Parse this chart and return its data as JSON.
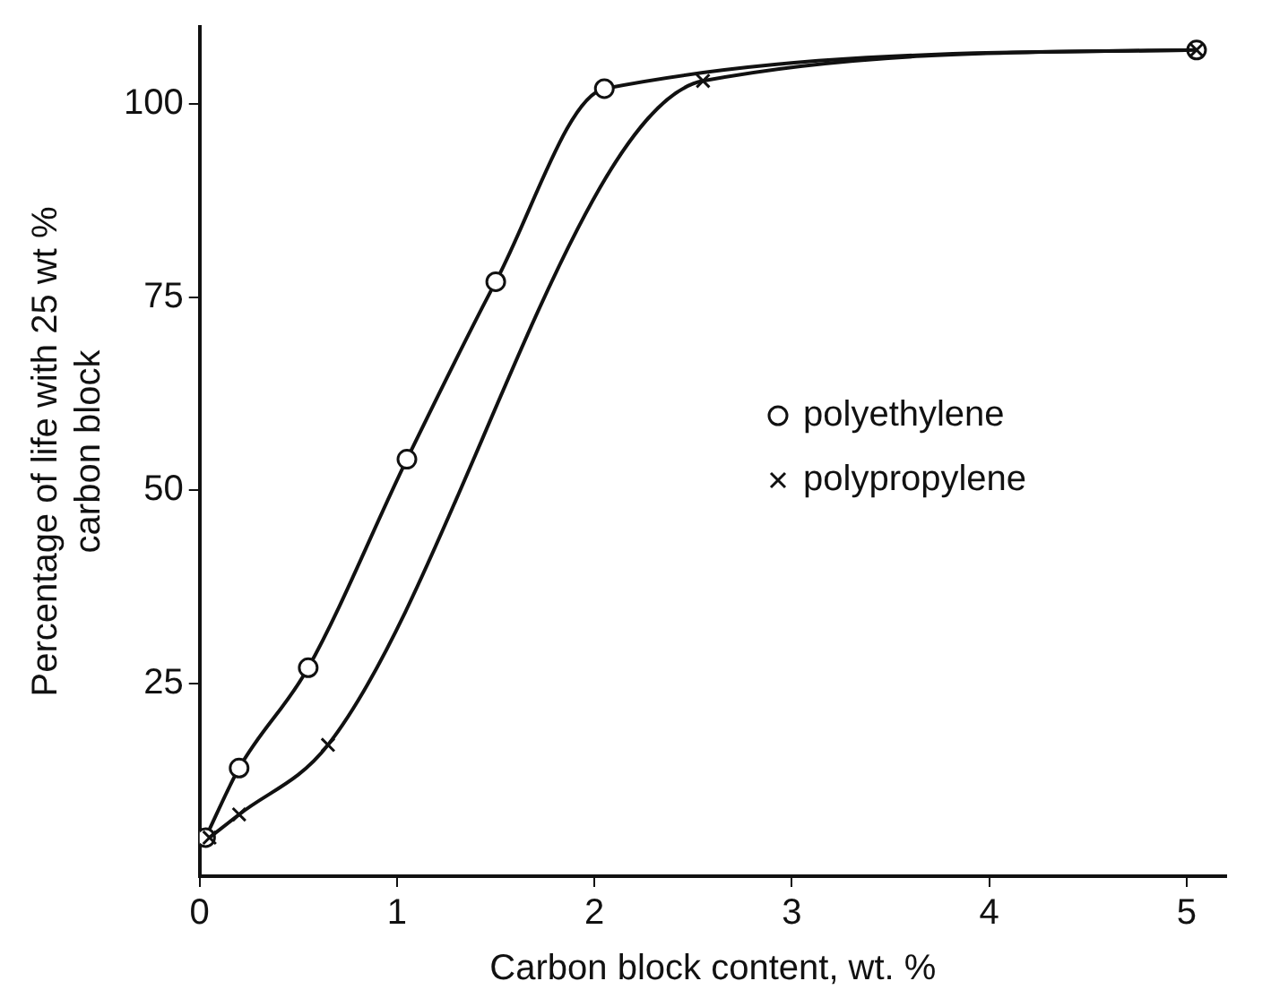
{
  "chart_data": {
    "type": "line",
    "xlabel": "Carbon block content, wt. %",
    "ylabel": "Percentage of life with 25 wt % carbon block",
    "xlim": [
      0,
      5.2
    ],
    "xticks": [
      0,
      1,
      2,
      3,
      4,
      5
    ],
    "ylim": [
      0,
      110
    ],
    "yticks": [
      25,
      50,
      75,
      100
    ],
    "grid": false,
    "legend": "right",
    "line_style": "solid",
    "series": [
      {
        "name": "polyethylene",
        "color": "#111111",
        "marker": "circle",
        "x": [
          0.03,
          0.2,
          0.55,
          1.05,
          1.5,
          2.05,
          5.05
        ],
        "values": [
          5,
          14,
          27,
          54,
          77,
          102,
          107
        ]
      },
      {
        "name": "polypropylene",
        "color": "#111111",
        "marker": "cross",
        "x": [
          0.05,
          0.2,
          0.65,
          2.55,
          5.05
        ],
        "values": [
          5,
          8,
          17,
          103,
          107
        ]
      }
    ]
  }
}
